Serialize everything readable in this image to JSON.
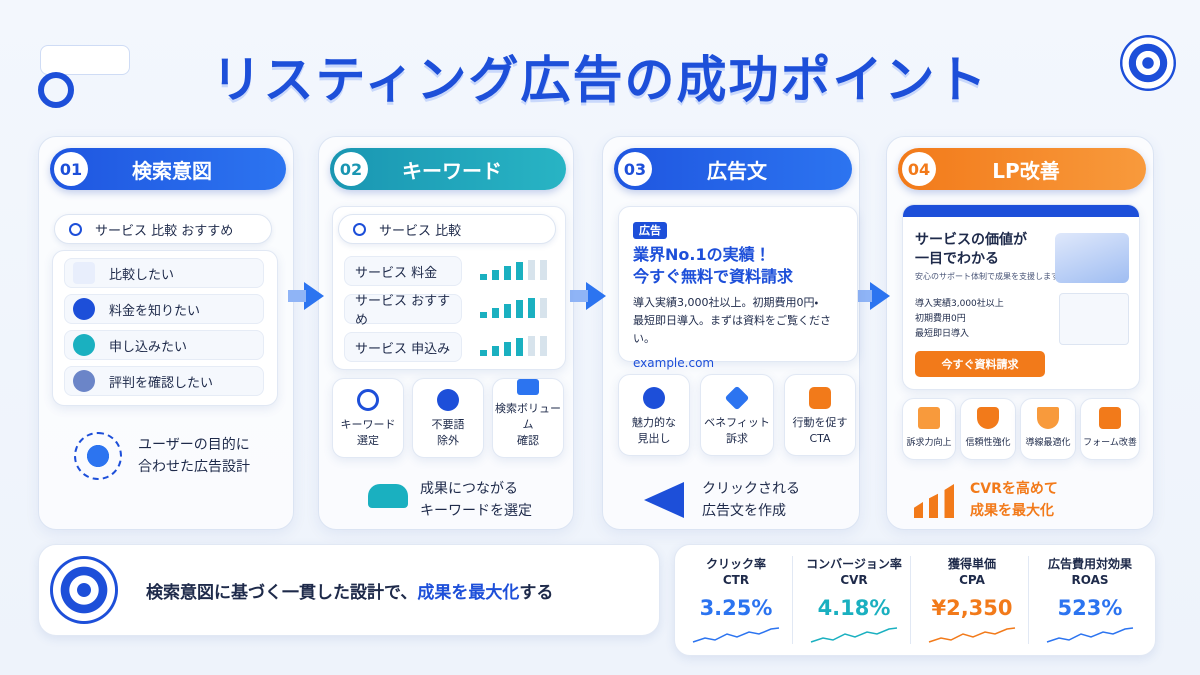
{
  "header": {
    "title": "リスティング広告の成功ポイント"
  },
  "steps": [
    {
      "number": "01",
      "title": "検索意図",
      "search": "サービス 比較 おすすめ",
      "intents": [
        "比較したい",
        "料金を知りたい",
        "申し込みたい",
        "評判を確認したい"
      ],
      "footer": [
        "ユーザーの目的に",
        "合わせた広告設計"
      ]
    },
    {
      "number": "02",
      "title": "キーワード",
      "search": "サービス 比較",
      "keywords": [
        "サービス 料金",
        "サービス おすすめ",
        "サービス 申込み"
      ],
      "actions": [
        [
          "キーワード",
          "選定"
        ],
        [
          "不要語",
          "除外"
        ],
        [
          "検索ボリューム",
          "確認"
        ]
      ],
      "footer": [
        "成果につながる",
        "キーワードを選定"
      ]
    },
    {
      "number": "03",
      "title": "広告文",
      "ad": {
        "label": "広告",
        "headline": [
          "業界No.1の実績！",
          "今すぐ無料で資料請求"
        ],
        "description": [
          "導入実績3,000社以上。初期費用0円・",
          "最短即日導入。まずは資料をご覧ください。"
        ],
        "url": "example.com"
      },
      "features": [
        [
          "魅力的な",
          "見出し"
        ],
        [
          "ベネフィット",
          "訴求"
        ],
        [
          "行動を促す",
          "CTA"
        ]
      ],
      "footer": [
        "クリックされる",
        "広告文を作成"
      ]
    },
    {
      "number": "04",
      "title": "LP改善",
      "lp": {
        "headline": [
          "サービスの価値が",
          "一目でわかる"
        ],
        "sub": "安心のサポート体制で成果を支援します",
        "checks": [
          "導入実績3,000社以上",
          "初期費用0円",
          "最短即日導入"
        ],
        "button": "今すぐ資料請求"
      },
      "features": [
        "訴求力向上",
        "信頼性強化",
        "導線最適化",
        "フォーム改善"
      ],
      "footer": [
        "CVRを高めて",
        "成果を最大化"
      ]
    }
  ],
  "summary": {
    "before": "検索意図に基づく一貫した設計で、",
    "highlight": "成果を最大化",
    "after": "する"
  },
  "metrics": [
    {
      "label": "クリック率",
      "abbr": "CTR",
      "value": "3.25%"
    },
    {
      "label": "コンバージョン率",
      "abbr": "CVR",
      "value": "4.18%"
    },
    {
      "label": "獲得単価",
      "abbr": "CPA",
      "value": "¥2,350"
    },
    {
      "label": "広告費用対効果",
      "abbr": "ROAS",
      "value": "523%"
    }
  ]
}
